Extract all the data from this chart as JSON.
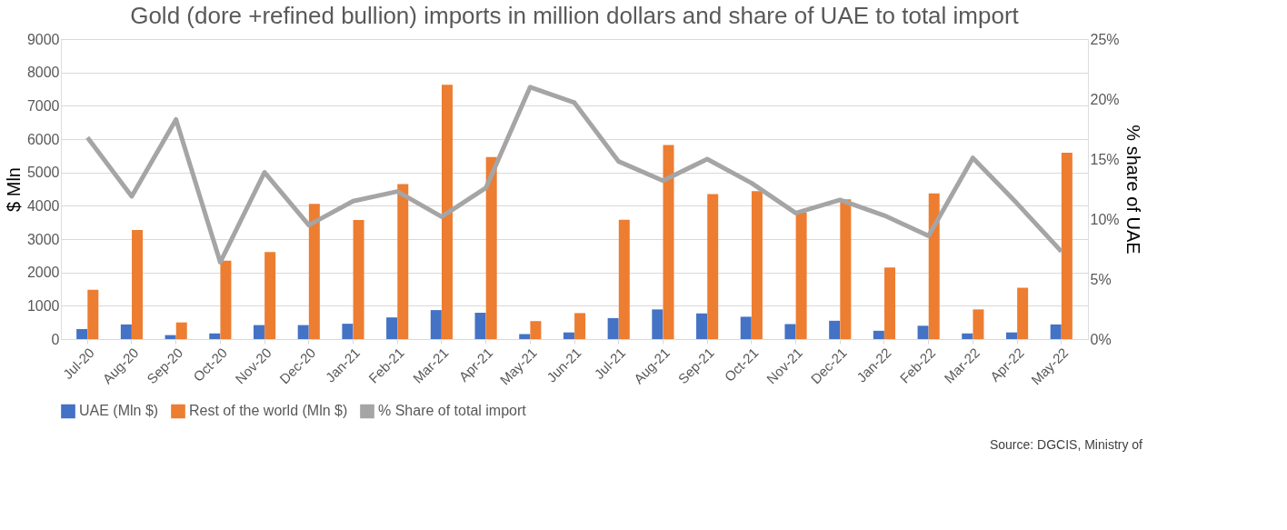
{
  "chart_data": {
    "type": "bar",
    "title": "Gold (dore +refined bullion) imports in million dollars and share of UAE to total import",
    "categories": [
      "Jul-20",
      "Aug-20",
      "Sep-20",
      "Oct-20",
      "Nov-20",
      "Dec-20",
      "Jan-21",
      "Feb-21",
      "Mar-21",
      "Apr-21",
      "May-21",
      "Jun-21",
      "Jul-21",
      "Aug-21",
      "Sep-21",
      "Oct-21",
      "Nov-21",
      "Dec-21",
      "Jan-22",
      "Feb-22",
      "Mar-22",
      "Apr-22",
      "May-22"
    ],
    "series": [
      {
        "name": "UAE (Mln $)",
        "color": "#4472c4",
        "values": [
          300,
          440,
          120,
          170,
          420,
          420,
          460,
          650,
          870,
          790,
          150,
          200,
          630,
          890,
          770,
          670,
          450,
          550,
          250,
          400,
          170,
          200,
          440
        ]
      },
      {
        "name": "Rest of the world (Mln $)",
        "color": "#ed7d31",
        "values": [
          1480,
          3270,
          500,
          2350,
          2610,
          4060,
          3570,
          4650,
          7630,
          5460,
          540,
          780,
          3580,
          5820,
          4350,
          4440,
          3800,
          4190,
          2150,
          4370,
          890,
          1540,
          5590
        ]
      },
      {
        "name": "% Share of total import",
        "color": "#a5a5a5",
        "type": "line",
        "axis": "y2",
        "values": [
          16.8,
          11.9,
          18.3,
          6.4,
          13.9,
          9.5,
          11.5,
          12.3,
          10.2,
          12.6,
          21.0,
          19.7,
          14.8,
          13.2,
          15.0,
          13.0,
          10.5,
          11.6,
          10.3,
          8.6,
          15.1,
          11.3,
          7.3
        ]
      }
    ],
    "ylabel": "$ Mln",
    "y2label": "% share of UAE",
    "ylim": [
      0,
      9000
    ],
    "yticks": [
      0,
      1000,
      2000,
      3000,
      4000,
      5000,
      6000,
      7000,
      8000,
      9000
    ],
    "y2lim": [
      0,
      25
    ],
    "y2ticks": [
      {
        "value": 0,
        "label": "0%"
      },
      {
        "value": 5,
        "label": "5%"
      },
      {
        "value": 10,
        "label": "10%"
      },
      {
        "value": 15,
        "label": "15%"
      },
      {
        "value": 20,
        "label": "20%"
      },
      {
        "value": 25,
        "label": "25%"
      }
    ],
    "grid": "y",
    "legend": "bottom",
    "annotations": [
      "Source: DGCIS, Ministry of"
    ]
  }
}
